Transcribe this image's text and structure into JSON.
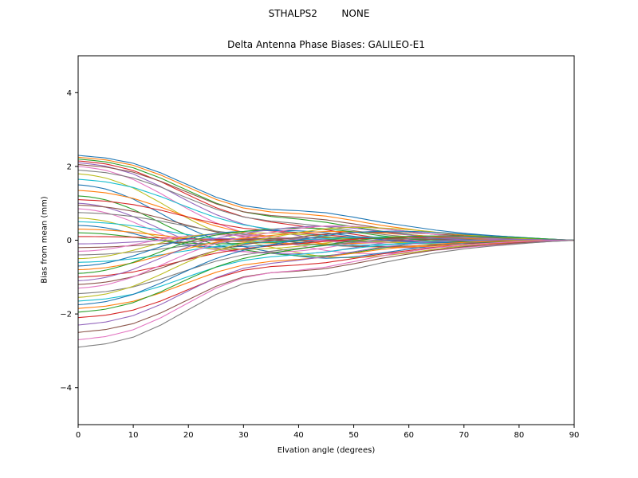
{
  "figure": {
    "suptitle": "STHALPS2        NONE",
    "title": "Delta Antenna Phase Biases: GALILEO-E1",
    "xlabel": "Elvation angle (degrees)",
    "ylabel": "Bias from mean (mm)"
  },
  "chart_data": {
    "type": "line",
    "title": "Delta Antenna Phase Biases: GALILEO-E1",
    "suptitle": "STHALPS2        NONE",
    "xlabel": "Elvation angle (degrees)",
    "ylabel": "Bias from mean (mm)",
    "xlim": [
      0,
      90
    ],
    "ylim": [
      -5,
      5
    ],
    "x_ticks": [
      0,
      10,
      20,
      30,
      40,
      50,
      60,
      70,
      80,
      90
    ],
    "x_tick_labels": [
      "0",
      "10",
      "20",
      "30",
      "40",
      "50",
      "60",
      "70",
      "80",
      "90"
    ],
    "y_ticks": [
      -4,
      -2,
      0,
      2,
      4
    ],
    "y_tick_labels": [
      "−4",
      "−2",
      "0",
      "2",
      "4"
    ],
    "grid": false,
    "legend": "none",
    "x_samples": [
      0,
      5,
      10,
      15,
      20,
      25,
      30,
      35,
      40,
      45,
      50,
      55,
      60,
      65,
      70,
      75,
      80,
      85,
      90
    ],
    "envelope": [
      1.0,
      0.97,
      0.91,
      0.8,
      0.66,
      0.52,
      0.42,
      0.38,
      0.37,
      0.35,
      0.3,
      0.24,
      0.19,
      0.14,
      0.1,
      0.07,
      0.045,
      0.02,
      0.0
    ],
    "palette": [
      "#1f77b4",
      "#ff7f0e",
      "#2ca02c",
      "#d62728",
      "#9467bd",
      "#8c564b",
      "#e377c2",
      "#7f7f7f",
      "#bcbd22",
      "#17becf"
    ],
    "series": [
      {
        "s": 2.3,
        "f": 0.004
      },
      {
        "s": 2.25,
        "f": 0.006
      },
      {
        "s": 2.2,
        "f": 0.009
      },
      {
        "s": 2.15,
        "f": 0.012
      },
      {
        "s": 2.1,
        "f": 0.016
      },
      {
        "s": 2.05,
        "f": 0.007
      },
      {
        "s": 2.0,
        "f": 0.02
      },
      {
        "s": 1.9,
        "f": 0.01
      },
      {
        "s": 1.8,
        "f": 0.024
      },
      {
        "s": 1.65,
        "f": 0.014
      },
      {
        "s": 1.5,
        "f": 0.028
      },
      {
        "s": 1.35,
        "f": 0.018
      },
      {
        "s": 1.2,
        "f": 0.032
      },
      {
        "s": 1.1,
        "f": 0.012
      },
      {
        "s": 1.0,
        "f": 0.036
      },
      {
        "s": 0.95,
        "f": 0.02
      },
      {
        "s": 0.85,
        "f": 0.04
      },
      {
        "s": 0.75,
        "f": 0.016
      },
      {
        "s": 0.6,
        "f": 0.044
      },
      {
        "s": 0.5,
        "f": 0.025
      },
      {
        "s": 0.4,
        "f": 0.048
      },
      {
        "s": 0.3,
        "f": 0.03
      },
      {
        "s": 0.2,
        "f": 0.05
      },
      {
        "s": 0.1,
        "f": 0.02
      },
      {
        "s": -0.1,
        "f": 0.045
      },
      {
        "s": -0.2,
        "f": 0.028
      },
      {
        "s": -0.3,
        "f": 0.05
      },
      {
        "s": -0.4,
        "f": 0.022
      },
      {
        "s": -0.5,
        "f": 0.042
      },
      {
        "s": -0.6,
        "f": 0.018
      },
      {
        "s": -0.7,
        "f": 0.038
      },
      {
        "s": -0.8,
        "f": 0.026
      },
      {
        "s": -0.9,
        "f": 0.034
      },
      {
        "s": -1.0,
        "f": 0.015
      },
      {
        "s": -1.1,
        "f": 0.03
      },
      {
        "s": -1.2,
        "f": 0.02
      },
      {
        "s": -1.3,
        "f": 0.026
      },
      {
        "s": -1.45,
        "f": 0.013
      },
      {
        "s": -1.55,
        "f": 0.022
      },
      {
        "s": -1.65,
        "f": 0.01
      },
      {
        "s": -1.75,
        "f": 0.018
      },
      {
        "s": -1.85,
        "f": 0.008
      },
      {
        "s": -1.95,
        "f": 0.014
      },
      {
        "s": -2.1,
        "f": 0.006
      },
      {
        "s": -2.3,
        "f": 0.01
      },
      {
        "s": -2.5,
        "f": 0.005
      },
      {
        "s": -2.7,
        "f": 0.007
      },
      {
        "s": -2.9,
        "f": 0.004
      }
    ]
  }
}
